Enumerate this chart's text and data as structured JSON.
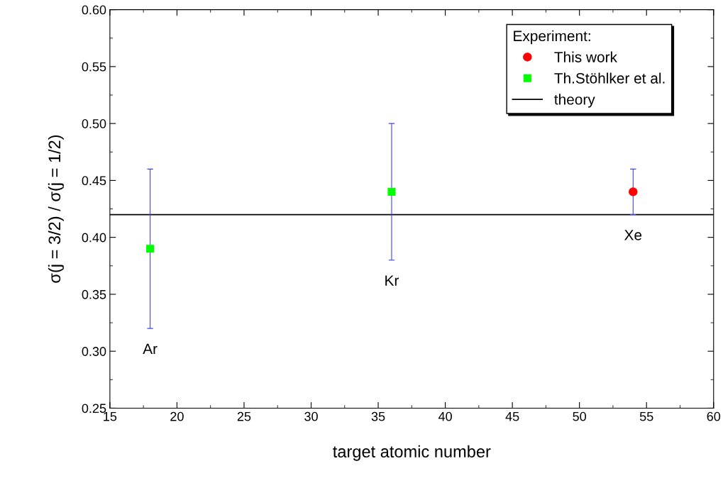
{
  "chart_data": {
    "type": "scatter",
    "xlabel": "target atomic number",
    "ylabel": "σ(j = 3/2) / σ(j = 1/2)",
    "legend_title": "Experiment:",
    "legend": "top right",
    "series": [
      {
        "name": "This work",
        "color": "#ff0000",
        "marker": "circle",
        "x": [
          54
        ],
        "values": [
          0.44
        ],
        "errors": [
          [
            0.42,
            0.46
          ]
        ]
      },
      {
        "name": "Th.Stöhlker et al.",
        "color": "#00ff00",
        "marker": "square",
        "x": [
          18,
          36
        ],
        "values": [
          0.39,
          0.44
        ],
        "errors": [
          [
            0.32,
            0.46
          ],
          [
            0.38,
            0.5
          ]
        ]
      }
    ],
    "annotations": [
      "Ar",
      "Kr",
      "Xe"
    ],
    "ref_lines": [
      {
        "axis": "y",
        "value": 0.42,
        "label": "theory",
        "color": "#000000",
        "line_style": "solid"
      }
    ],
    "xlim": [
      15,
      60
    ],
    "xticks": [
      15,
      20,
      25,
      30,
      35,
      40,
      45,
      50,
      55,
      60
    ],
    "ylim": [
      0.25,
      0.6
    ],
    "yticks": [
      {
        "value": 0.25,
        "label": "0.25"
      },
      {
        "value": 0.3,
        "label": "0.30"
      },
      {
        "value": 0.35,
        "label": "0.35"
      },
      {
        "value": 0.4,
        "label": "0.40"
      },
      {
        "value": 0.45,
        "label": "0.45"
      },
      {
        "value": 0.5,
        "label": "0.50"
      },
      {
        "value": 0.55,
        "label": "0.55"
      },
      {
        "value": 0.6,
        "label": "0.60"
      }
    ],
    "grid": false
  }
}
